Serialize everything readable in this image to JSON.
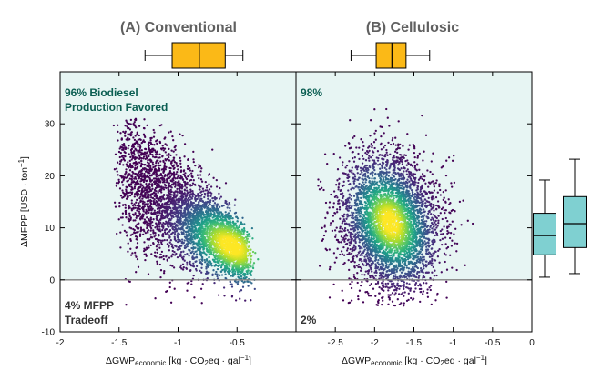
{
  "colors": {
    "favored_bg": "#e7f5f3",
    "favored_text": "#0b5e52",
    "tradeoff_text": "#333333",
    "box_top": "#fbb917",
    "box_side": "#7fd0d1",
    "zero_line": "#808080"
  },
  "chart_data": [
    {
      "type": "scatter",
      "panel": "A",
      "title": "(A) Conventional",
      "xlabel_main": "ΔGWP",
      "xlabel_sub": "economic",
      "xlabel_units": " [kg · CO",
      "xlabel_units2": "2",
      "xlabel_units3": "eq · gal",
      "xlabel_exp": "−1",
      "xlabel_close": "]",
      "ylabel_main": "ΔMFPP [USD · ton",
      "ylabel_exp": "−1",
      "ylabel_close": "]",
      "xlim": [
        -2.0,
        0.0
      ],
      "ylim": [
        -10,
        40
      ],
      "xticks": [
        -2.0,
        -1.5,
        -1.0,
        -0.5
      ],
      "xtick_labels": [
        "-2",
        "-1.5",
        "-1",
        "-0.5"
      ],
      "yticks": [
        -10,
        0,
        10,
        20,
        30
      ],
      "ytick_labels": [
        "-10",
        "0",
        "10",
        "20",
        "30"
      ],
      "favored_label_1": "96% Biodiesel",
      "favored_label_2": "Production Favored",
      "tradeoff_label_1": "4% MFPP",
      "tradeoff_label_2": "Tradeoff",
      "favored_pct": 96,
      "tradeoff_pct": 4,
      "density": {
        "center_x": -0.55,
        "center_y": 6.5,
        "x_min": -1.5,
        "x_max": -0.3,
        "y_min": -3,
        "y_max": 29,
        "n_points": 4200,
        "correlation": "negative"
      },
      "box_x": {
        "whisker_low": -1.28,
        "q1": -1.05,
        "median": -0.82,
        "q3": -0.6,
        "whisker_high": -0.45
      }
    },
    {
      "type": "scatter",
      "panel": "B",
      "title": "(B) Cellulosic",
      "xlabel_main": "ΔGWP",
      "xlabel_sub": "economic",
      "xlabel_units": " [kg · CO",
      "xlabel_units2": "2",
      "xlabel_units3": "eq · gal",
      "xlabel_exp": "−1",
      "xlabel_close": "]",
      "xlim": [
        -3.0,
        0.0
      ],
      "ylim": [
        -10,
        40
      ],
      "xticks": [
        -2.5,
        -2.0,
        -1.5,
        -1.0,
        -0.5,
        0.0
      ],
      "xtick_labels": [
        "-2.5",
        "-2",
        "-1.5",
        "-1",
        "-0.5",
        "0"
      ],
      "favored_label_1": "98%",
      "tradeoff_label_1": "2%",
      "favored_pct": 98,
      "tradeoff_pct": 2,
      "density": {
        "center_x": -1.8,
        "center_y": 11,
        "x_min": -2.75,
        "x_max": -0.8,
        "y_min": -3,
        "y_max": 32,
        "n_points": 4200,
        "correlation": "weak negative"
      },
      "box_x": {
        "whisker_low": -2.3,
        "q1": -1.98,
        "median": -1.78,
        "q3": -1.6,
        "whisker_high": -1.3
      }
    },
    {
      "type": "box",
      "panel": "side",
      "ylim": [
        -10,
        40
      ],
      "boxes": [
        {
          "group": "Conventional",
          "whisker_low": 0.5,
          "q1": 4.8,
          "median": 8.5,
          "q3": 12.8,
          "whisker_high": 19.2
        },
        {
          "group": "Cellulosic",
          "whisker_low": 1.2,
          "q1": 6.2,
          "median": 10.8,
          "q3": 16.0,
          "whisker_high": 23.2
        }
      ]
    }
  ]
}
